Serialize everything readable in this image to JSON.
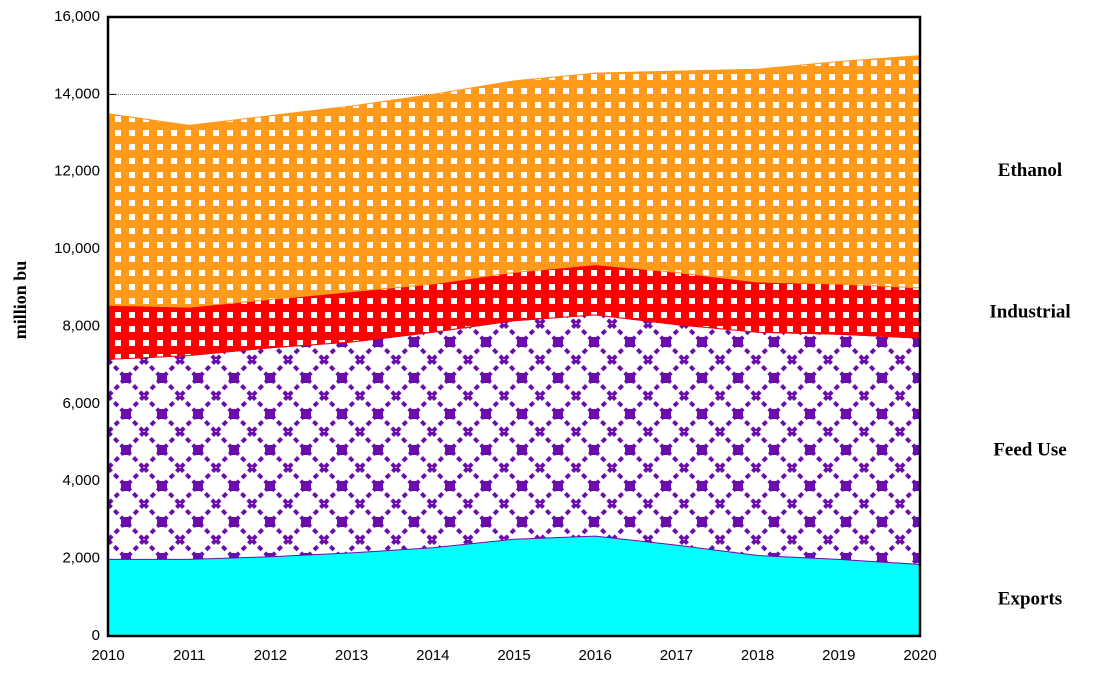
{
  "chart_data": {
    "type": "stacked-area",
    "y_label": "million bu",
    "x": [
      2010,
      2011,
      2012,
      2013,
      2014,
      2015,
      2016,
      2017,
      2018,
      2019,
      2020
    ],
    "series": [
      {
        "name": "Exports",
        "color": "#00ffff",
        "values": [
          1980,
          1980,
          2050,
          2150,
          2280,
          2500,
          2580,
          2350,
          2080,
          1980,
          1850
        ]
      },
      {
        "name": "Feed Use",
        "color": "#6a0dad",
        "values": [
          5170,
          5270,
          5400,
          5450,
          5570,
          5650,
          5720,
          5700,
          5770,
          5820,
          5850
        ]
      },
      {
        "name": "Industrial",
        "color": "#ff0000",
        "values": [
          1400,
          1250,
          1250,
          1300,
          1250,
          1250,
          1300,
          1350,
          1300,
          1300,
          1300
        ]
      },
      {
        "name": "Ethanol",
        "color": "#ff9a1a",
        "values": [
          4950,
          4700,
          4750,
          4800,
          4900,
          4950,
          4950,
          5200,
          5500,
          5750,
          6000
        ]
      }
    ],
    "xlim": [
      2010,
      2020
    ],
    "xticks": [
      2010,
      2011,
      2012,
      2013,
      2014,
      2015,
      2016,
      2017,
      2018,
      2019,
      2020
    ],
    "ylim": [
      0,
      16000
    ],
    "yticks": [
      0,
      {
        "value": 2000,
        "label": "2,000"
      },
      {
        "value": 4000,
        "label": "4,000"
      },
      {
        "value": 6000,
        "label": "6,000"
      },
      {
        "value": 8000,
        "label": "8,000"
      },
      {
        "value": 10000,
        "label": "10,000"
      },
      {
        "value": 12000,
        "label": "12,000"
      },
      {
        "value": 14000,
        "label": "14,000"
      },
      {
        "value": 16000,
        "label": "16,000"
      }
    ],
    "grid": true,
    "legend": "right"
  }
}
